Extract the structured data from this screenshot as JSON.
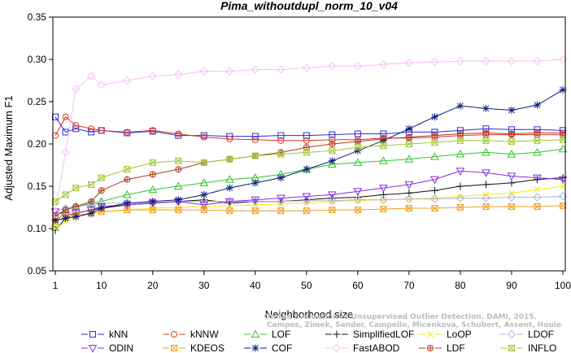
{
  "chart_data": {
    "type": "line",
    "title": "Pima_withoutdupl_norm_10_v04",
    "xlabel": "Neighborhood size",
    "ylabel": "Adjusted Maximum F1",
    "xlim": [
      1,
      100
    ],
    "ylim": [
      0.05,
      0.35
    ],
    "xticks": [
      "1",
      "10",
      "20",
      "30",
      "40",
      "50",
      "60",
      "70",
      "80",
      "90",
      "100"
    ],
    "yticks": [
      "0.05",
      "0.10",
      "0.15",
      "0.20",
      "0.25",
      "0.30",
      "0.35"
    ],
    "grid": false,
    "legend_position": "bottom",
    "watermark": "Campos, Zimek, Sander, Campello, Micenkova, Schubert, Assent, Houle: On the Evaluation of Unsupervised Outlier Detection. DAMI, 2015.",
    "watermark_lines": [
      "On the Evaluation of Unsupervised Outlier Detection. DAMI, 2015.",
      "Campos, Zimek, Sander, Campello, Micenkova, Schubert, Assent, Houle"
    ],
    "series": [
      {
        "name": "kNN",
        "color": "#2b2bd6",
        "marker": "square",
        "points": [
          [
            1,
            0.232
          ],
          [
            3,
            0.214
          ],
          [
            5,
            0.218
          ],
          [
            8,
            0.214
          ],
          [
            10,
            0.216
          ],
          [
            15,
            0.213
          ],
          [
            20,
            0.215
          ],
          [
            25,
            0.21
          ],
          [
            30,
            0.21
          ],
          [
            35,
            0.209
          ],
          [
            40,
            0.209
          ],
          [
            45,
            0.21
          ],
          [
            50,
            0.21
          ],
          [
            55,
            0.211
          ],
          [
            60,
            0.212
          ],
          [
            65,
            0.212
          ],
          [
            70,
            0.214
          ],
          [
            75,
            0.214
          ],
          [
            80,
            0.216
          ],
          [
            85,
            0.218
          ],
          [
            90,
            0.217
          ],
          [
            95,
            0.217
          ],
          [
            100,
            0.216
          ]
        ]
      },
      {
        "name": "kNNW",
        "color": "#e0341e",
        "marker": "circle",
        "points": [
          [
            1,
            0.21
          ],
          [
            3,
            0.232
          ],
          [
            5,
            0.222
          ],
          [
            8,
            0.218
          ],
          [
            10,
            0.216
          ],
          [
            15,
            0.214
          ],
          [
            20,
            0.216
          ],
          [
            25,
            0.212
          ],
          [
            30,
            0.208
          ],
          [
            35,
            0.206
          ],
          [
            40,
            0.205
          ],
          [
            45,
            0.204
          ],
          [
            50,
            0.204
          ],
          [
            55,
            0.205
          ],
          [
            60,
            0.205
          ],
          [
            65,
            0.207
          ],
          [
            70,
            0.207
          ],
          [
            75,
            0.208
          ],
          [
            80,
            0.21
          ],
          [
            85,
            0.211
          ],
          [
            90,
            0.211
          ],
          [
            95,
            0.211
          ],
          [
            100,
            0.211
          ]
        ]
      },
      {
        "name": "LOF",
        "color": "#2fc42f",
        "marker": "triangle-up",
        "points": [
          [
            1,
            0.106
          ],
          [
            3,
            0.122
          ],
          [
            5,
            0.126
          ],
          [
            8,
            0.13
          ],
          [
            10,
            0.132
          ],
          [
            15,
            0.14
          ],
          [
            20,
            0.146
          ],
          [
            25,
            0.15
          ],
          [
            30,
            0.154
          ],
          [
            35,
            0.158
          ],
          [
            40,
            0.16
          ],
          [
            45,
            0.164
          ],
          [
            50,
            0.17
          ],
          [
            55,
            0.176
          ],
          [
            60,
            0.178
          ],
          [
            65,
            0.18
          ],
          [
            70,
            0.182
          ],
          [
            75,
            0.185
          ],
          [
            80,
            0.188
          ],
          [
            85,
            0.19
          ],
          [
            90,
            0.188
          ],
          [
            95,
            0.19
          ],
          [
            100,
            0.194
          ]
        ]
      },
      {
        "name": "SimplifiedLOF",
        "color": "#111111",
        "marker": "plus",
        "points": [
          [
            1,
            0.098
          ],
          [
            3,
            0.112
          ],
          [
            5,
            0.118
          ],
          [
            8,
            0.122
          ],
          [
            10,
            0.124
          ],
          [
            15,
            0.128
          ],
          [
            20,
            0.13
          ],
          [
            25,
            0.132
          ],
          [
            30,
            0.134
          ],
          [
            35,
            0.13
          ],
          [
            40,
            0.132
          ],
          [
            45,
            0.132
          ],
          [
            50,
            0.134
          ],
          [
            55,
            0.136
          ],
          [
            60,
            0.137
          ],
          [
            65,
            0.14
          ],
          [
            70,
            0.142
          ],
          [
            75,
            0.145
          ],
          [
            80,
            0.15
          ],
          [
            85,
            0.152
          ],
          [
            90,
            0.154
          ],
          [
            95,
            0.158
          ],
          [
            100,
            0.16
          ]
        ]
      },
      {
        "name": "LoOP",
        "color": "#f2ea16",
        "marker": "cross",
        "points": [
          [
            1,
            0.1
          ],
          [
            3,
            0.108
          ],
          [
            5,
            0.114
          ],
          [
            8,
            0.118
          ],
          [
            10,
            0.12
          ],
          [
            15,
            0.122
          ],
          [
            20,
            0.124
          ],
          [
            25,
            0.125
          ],
          [
            30,
            0.126
          ],
          [
            35,
            0.127
          ],
          [
            40,
            0.128
          ],
          [
            45,
            0.129
          ],
          [
            50,
            0.13
          ],
          [
            55,
            0.132
          ],
          [
            60,
            0.133
          ],
          [
            65,
            0.134
          ],
          [
            70,
            0.135
          ],
          [
            75,
            0.136
          ],
          [
            80,
            0.138
          ],
          [
            85,
            0.14
          ],
          [
            90,
            0.142
          ],
          [
            95,
            0.146
          ],
          [
            100,
            0.15
          ]
        ]
      },
      {
        "name": "LDOF",
        "color": "#b0b0e0",
        "marker": "diamond",
        "points": [
          [
            1,
            0.12
          ],
          [
            3,
            0.124
          ],
          [
            5,
            0.126
          ],
          [
            8,
            0.128
          ],
          [
            10,
            0.13
          ],
          [
            15,
            0.13
          ],
          [
            20,
            0.131
          ],
          [
            25,
            0.132
          ],
          [
            30,
            0.132
          ],
          [
            35,
            0.132
          ],
          [
            40,
            0.132
          ],
          [
            45,
            0.132
          ],
          [
            50,
            0.133
          ],
          [
            55,
            0.133
          ],
          [
            60,
            0.134
          ],
          [
            65,
            0.134
          ],
          [
            70,
            0.135
          ],
          [
            75,
            0.135
          ],
          [
            80,
            0.136
          ],
          [
            85,
            0.136
          ],
          [
            90,
            0.137
          ],
          [
            95,
            0.137
          ],
          [
            100,
            0.138
          ]
        ]
      },
      {
        "name": "ODIN",
        "color": "#8a2be2",
        "marker": "triangle-down",
        "points": [
          [
            1,
            0.12
          ],
          [
            3,
            0.116
          ],
          [
            5,
            0.118
          ],
          [
            8,
            0.122
          ],
          [
            10,
            0.126
          ],
          [
            15,
            0.128
          ],
          [
            20,
            0.13
          ],
          [
            25,
            0.132
          ],
          [
            30,
            0.128
          ],
          [
            35,
            0.132
          ],
          [
            40,
            0.134
          ],
          [
            45,
            0.136
          ],
          [
            50,
            0.138
          ],
          [
            55,
            0.14
          ],
          [
            60,
            0.144
          ],
          [
            65,
            0.148
          ],
          [
            70,
            0.152
          ],
          [
            75,
            0.158
          ],
          [
            80,
            0.168
          ],
          [
            85,
            0.166
          ],
          [
            90,
            0.162
          ],
          [
            95,
            0.16
          ],
          [
            100,
            0.158
          ]
        ]
      },
      {
        "name": "KDEOS",
        "color": "#f0a020",
        "marker": "square-x",
        "points": [
          [
            1,
            0.108
          ],
          [
            3,
            0.114
          ],
          [
            5,
            0.116
          ],
          [
            8,
            0.118
          ],
          [
            10,
            0.12
          ],
          [
            15,
            0.122
          ],
          [
            20,
            0.122
          ],
          [
            25,
            0.122
          ],
          [
            30,
            0.122
          ],
          [
            35,
            0.121
          ],
          [
            40,
            0.121
          ],
          [
            45,
            0.121
          ],
          [
            50,
            0.121
          ],
          [
            55,
            0.122
          ],
          [
            60,
            0.122
          ],
          [
            65,
            0.123
          ],
          [
            70,
            0.124
          ],
          [
            75,
            0.124
          ],
          [
            80,
            0.125
          ],
          [
            85,
            0.126
          ],
          [
            90,
            0.126
          ],
          [
            95,
            0.126
          ],
          [
            100,
            0.127
          ]
        ]
      },
      {
        "name": "COF",
        "color": "#0c1e7a",
        "marker": "asterisk",
        "points": [
          [
            1,
            0.11
          ],
          [
            3,
            0.112
          ],
          [
            5,
            0.114
          ],
          [
            8,
            0.118
          ],
          [
            10,
            0.124
          ],
          [
            15,
            0.13
          ],
          [
            20,
            0.132
          ],
          [
            25,
            0.134
          ],
          [
            30,
            0.14
          ],
          [
            35,
            0.148
          ],
          [
            40,
            0.154
          ],
          [
            45,
            0.16
          ],
          [
            50,
            0.17
          ],
          [
            55,
            0.18
          ],
          [
            60,
            0.192
          ],
          [
            65,
            0.204
          ],
          [
            70,
            0.218
          ],
          [
            75,
            0.232
          ],
          [
            80,
            0.245
          ],
          [
            85,
            0.242
          ],
          [
            90,
            0.24
          ],
          [
            95,
            0.246
          ],
          [
            100,
            0.264
          ]
        ]
      },
      {
        "name": "FastABOD",
        "color": "#f5c0f5",
        "marker": "diamond",
        "points": [
          [
            1,
            0.12
          ],
          [
            3,
            0.19
          ],
          [
            5,
            0.265
          ],
          [
            8,
            0.28
          ],
          [
            10,
            0.27
          ],
          [
            15,
            0.275
          ],
          [
            20,
            0.28
          ],
          [
            25,
            0.282
          ],
          [
            30,
            0.286
          ],
          [
            35,
            0.286
          ],
          [
            40,
            0.288
          ],
          [
            45,
            0.288
          ],
          [
            50,
            0.29
          ],
          [
            55,
            0.292
          ],
          [
            60,
            0.292
          ],
          [
            65,
            0.294
          ],
          [
            70,
            0.296
          ],
          [
            75,
            0.297
          ],
          [
            80,
            0.298
          ],
          [
            85,
            0.298
          ],
          [
            90,
            0.298
          ],
          [
            95,
            0.298
          ],
          [
            100,
            0.3
          ]
        ]
      },
      {
        "name": "LDF",
        "color": "#b03a24",
        "marker": "circle-plus",
        "points": [
          [
            1,
            0.115
          ],
          [
            3,
            0.122
          ],
          [
            5,
            0.126
          ],
          [
            8,
            0.132
          ],
          [
            10,
            0.145
          ],
          [
            15,
            0.158
          ],
          [
            20,
            0.164
          ],
          [
            25,
            0.17
          ],
          [
            30,
            0.178
          ],
          [
            35,
            0.182
          ],
          [
            40,
            0.186
          ],
          [
            45,
            0.19
          ],
          [
            50,
            0.196
          ],
          [
            55,
            0.2
          ],
          [
            60,
            0.203
          ],
          [
            65,
            0.206
          ],
          [
            70,
            0.208
          ],
          [
            75,
            0.21
          ],
          [
            80,
            0.212
          ],
          [
            85,
            0.213
          ],
          [
            90,
            0.212
          ],
          [
            95,
            0.213
          ],
          [
            100,
            0.213
          ]
        ]
      },
      {
        "name": "INFLO",
        "color": "#a0c838",
        "marker": "square-x",
        "points": [
          [
            1,
            0.132
          ],
          [
            3,
            0.14
          ],
          [
            5,
            0.148
          ],
          [
            8,
            0.152
          ],
          [
            10,
            0.16
          ],
          [
            15,
            0.17
          ],
          [
            20,
            0.178
          ],
          [
            25,
            0.18
          ],
          [
            30,
            0.178
          ],
          [
            35,
            0.182
          ],
          [
            40,
            0.186
          ],
          [
            45,
            0.188
          ],
          [
            50,
            0.19
          ],
          [
            55,
            0.192
          ],
          [
            60,
            0.196
          ],
          [
            65,
            0.198
          ],
          [
            70,
            0.2
          ],
          [
            75,
            0.202
          ],
          [
            80,
            0.204
          ],
          [
            85,
            0.204
          ],
          [
            90,
            0.203
          ],
          [
            95,
            0.204
          ],
          [
            100,
            0.205
          ]
        ]
      }
    ]
  }
}
